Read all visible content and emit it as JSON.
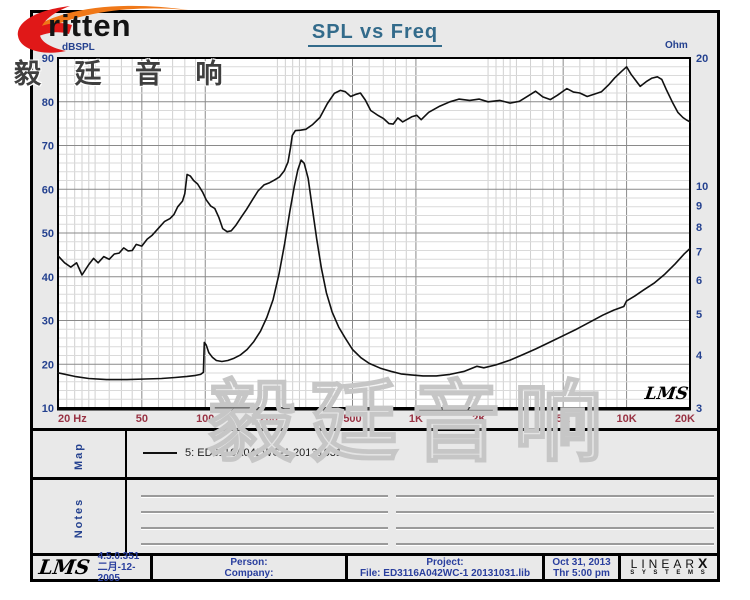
{
  "brand": {
    "logo_text": "ritten",
    "chinese_name": "毅 廷 音 响"
  },
  "header": {
    "title": "SPL vs Freq"
  },
  "chart_labels": {
    "left_unit": "dBSPL",
    "right_unit": "Ohm",
    "lms_script": "LMS",
    "watermark": "毅廷音响"
  },
  "chart_data": {
    "type": "line",
    "title": "SPL vs Freq",
    "x_axis": {
      "label": "Hz",
      "scale": "log",
      "range": [
        20,
        20000
      ],
      "ticks": [
        [
          20,
          "20  Hz"
        ],
        [
          50,
          "50"
        ],
        [
          100,
          "100"
        ],
        [
          200,
          "200"
        ],
        [
          500,
          "500"
        ],
        [
          1000,
          "1K"
        ],
        [
          2000,
          "2K"
        ],
        [
          5000,
          "5K"
        ],
        [
          10000,
          "10K"
        ],
        [
          20000,
          "20K"
        ]
      ]
    },
    "y_left": {
      "label": "dBSPL",
      "scale": "linear",
      "range": [
        10,
        90
      ],
      "ticks": [
        90,
        80,
        70,
        60,
        50,
        40,
        30,
        20,
        10
      ]
    },
    "y_right": {
      "label": "Ohm",
      "scale": "log",
      "range": [
        3,
        20
      ],
      "ticks": [
        20,
        10,
        9,
        8,
        7,
        6,
        5,
        4,
        3
      ]
    },
    "grid": true,
    "legend_position": "map-panel",
    "series": [
      {
        "name": "5: ED3116A042WC-1  20131031 (SPL dB)",
        "axis": "left",
        "color": "#111111",
        "points": [
          [
            20,
            44.8
          ],
          [
            21.5,
            43.2
          ],
          [
            23,
            42.2
          ],
          [
            24.5,
            43.2
          ],
          [
            26,
            40.4
          ],
          [
            28,
            42.8
          ],
          [
            29.5,
            44.2
          ],
          [
            31,
            43.2
          ],
          [
            33,
            44.6
          ],
          [
            35,
            44.0
          ],
          [
            37,
            45.2
          ],
          [
            39,
            45.4
          ],
          [
            41,
            46.6
          ],
          [
            43,
            45.9
          ],
          [
            45,
            46.0
          ],
          [
            47,
            47.4
          ],
          [
            50,
            47.0
          ],
          [
            53,
            48.6
          ],
          [
            56,
            49.5
          ],
          [
            60,
            51.1
          ],
          [
            64,
            52.6
          ],
          [
            68,
            53.3
          ],
          [
            71,
            54.2
          ],
          [
            74,
            56.0
          ],
          [
            78,
            57.3
          ],
          [
            80,
            59.0
          ],
          [
            82,
            63.4
          ],
          [
            85,
            63.0
          ],
          [
            88,
            62.0
          ],
          [
            92,
            61.2
          ],
          [
            97,
            59.4
          ],
          [
            101,
            57.6
          ],
          [
            106,
            56.2
          ],
          [
            111,
            55.6
          ],
          [
            116,
            53.6
          ],
          [
            121,
            51.0
          ],
          [
            127,
            50.3
          ],
          [
            133,
            50.5
          ],
          [
            140,
            51.8
          ],
          [
            148,
            53.6
          ],
          [
            157,
            55.4
          ],
          [
            167,
            57.5
          ],
          [
            178,
            59.6
          ],
          [
            190,
            61.0
          ],
          [
            202,
            61.5
          ],
          [
            213,
            62.1
          ],
          [
            225,
            62.8
          ],
          [
            237,
            64.2
          ],
          [
            247,
            66.2
          ],
          [
            254,
            69.5
          ],
          [
            259,
            72.3
          ],
          [
            268,
            73.4
          ],
          [
            283,
            73.5
          ],
          [
            300,
            73.7
          ],
          [
            322,
            74.7
          ],
          [
            350,
            76.4
          ],
          [
            380,
            79.6
          ],
          [
            410,
            81.9
          ],
          [
            438,
            82.6
          ],
          [
            462,
            82.3
          ],
          [
            490,
            81.2
          ],
          [
            520,
            81.7
          ],
          [
            545,
            82.0
          ],
          [
            575,
            80.4
          ],
          [
            610,
            78.0
          ],
          [
            655,
            77.0
          ],
          [
            700,
            76.2
          ],
          [
            745,
            75.0
          ],
          [
            780,
            74.9
          ],
          [
            820,
            76.3
          ],
          [
            865,
            75.4
          ],
          [
            910,
            76.0
          ],
          [
            960,
            76.6
          ],
          [
            1010,
            76.9
          ],
          [
            1060,
            75.9
          ],
          [
            1150,
            77.6
          ],
          [
            1300,
            79.0
          ],
          [
            1450,
            80.0
          ],
          [
            1600,
            80.6
          ],
          [
            1800,
            80.3
          ],
          [
            2000,
            80.6
          ],
          [
            2200,
            80.0
          ],
          [
            2500,
            80.3
          ],
          [
            2800,
            79.7
          ],
          [
            3100,
            80.1
          ],
          [
            3400,
            81.3
          ],
          [
            3700,
            82.4
          ],
          [
            4000,
            81.1
          ],
          [
            4350,
            80.5
          ],
          [
            4700,
            81.5
          ],
          [
            5200,
            83.0
          ],
          [
            5600,
            82.2
          ],
          [
            6000,
            82.0
          ],
          [
            6500,
            81.2
          ],
          [
            7000,
            81.7
          ],
          [
            7600,
            82.3
          ],
          [
            8200,
            83.8
          ],
          [
            8800,
            85.5
          ],
          [
            9500,
            87.0
          ],
          [
            10000,
            88.0
          ],
          [
            10500,
            86.3
          ],
          [
            11000,
            85.0
          ],
          [
            11600,
            83.5
          ],
          [
            12400,
            84.6
          ],
          [
            13200,
            85.4
          ],
          [
            14000,
            85.7
          ],
          [
            14700,
            85.1
          ],
          [
            15500,
            82.6
          ],
          [
            16500,
            79.9
          ],
          [
            17500,
            77.6
          ],
          [
            18500,
            76.4
          ],
          [
            19300,
            75.8
          ],
          [
            20000,
            75.4
          ]
        ]
      },
      {
        "name": "5: ED3116A042WC-1  20131031 (Impedance Ohm)",
        "axis": "right",
        "color": "#111111",
        "points": [
          [
            20,
            3.63
          ],
          [
            24,
            3.56
          ],
          [
            28,
            3.52
          ],
          [
            34,
            3.5
          ],
          [
            42,
            3.5
          ],
          [
            52,
            3.51
          ],
          [
            62,
            3.52
          ],
          [
            72,
            3.54
          ],
          [
            82,
            3.56
          ],
          [
            90,
            3.58
          ],
          [
            95,
            3.6
          ],
          [
            98,
            3.64
          ],
          [
            99,
            4.28
          ],
          [
            101,
            4.22
          ],
          [
            104,
            4.05
          ],
          [
            108,
            3.95
          ],
          [
            113,
            3.88
          ],
          [
            120,
            3.86
          ],
          [
            128,
            3.88
          ],
          [
            137,
            3.93
          ],
          [
            147,
            4.0
          ],
          [
            158,
            4.12
          ],
          [
            170,
            4.3
          ],
          [
            183,
            4.55
          ],
          [
            196,
            4.9
          ],
          [
            210,
            5.4
          ],
          [
            224,
            6.2
          ],
          [
            238,
            7.3
          ],
          [
            252,
            8.7
          ],
          [
            265,
            10.0
          ],
          [
            275,
            10.9
          ],
          [
            285,
            11.5
          ],
          [
            295,
            11.3
          ],
          [
            308,
            10.4
          ],
          [
            322,
            8.9
          ],
          [
            338,
            7.5
          ],
          [
            356,
            6.4
          ],
          [
            376,
            5.6
          ],
          [
            400,
            5.05
          ],
          [
            430,
            4.65
          ],
          [
            462,
            4.38
          ],
          [
            500,
            4.12
          ],
          [
            548,
            3.94
          ],
          [
            600,
            3.82
          ],
          [
            680,
            3.72
          ],
          [
            760,
            3.66
          ],
          [
            850,
            3.61
          ],
          [
            950,
            3.59
          ],
          [
            1080,
            3.57
          ],
          [
            1250,
            3.57
          ],
          [
            1450,
            3.6
          ],
          [
            1700,
            3.66
          ],
          [
            1950,
            3.76
          ],
          [
            2100,
            3.73
          ],
          [
            2400,
            3.79
          ],
          [
            2800,
            3.89
          ],
          [
            3200,
            4.0
          ],
          [
            3700,
            4.13
          ],
          [
            4300,
            4.28
          ],
          [
            5000,
            4.44
          ],
          [
            5800,
            4.6
          ],
          [
            6700,
            4.78
          ],
          [
            7700,
            4.96
          ],
          [
            8700,
            5.1
          ],
          [
            9700,
            5.2
          ],
          [
            10000,
            5.36
          ],
          [
            10900,
            5.5
          ],
          [
            12000,
            5.68
          ],
          [
            13500,
            5.9
          ],
          [
            15200,
            6.2
          ],
          [
            17000,
            6.55
          ],
          [
            18800,
            6.92
          ],
          [
            20000,
            7.12
          ]
        ]
      }
    ]
  },
  "map_section": {
    "label": "Map",
    "legend": "5: ED3116A042WC-1  20131031"
  },
  "notes_section": {
    "label": "Notes"
  },
  "footer": {
    "lms": "LMS",
    "version": "4.5.0.351",
    "version_date": "二月-12-2005",
    "person": "Person:",
    "company": "Company:",
    "project": "Project:",
    "file": "File: ED3116A042WC-1  20131031.lib",
    "date": "Oct 31, 2013",
    "time": "Thr  5:00 pm",
    "linearx_main": "LINEAR",
    "linearx_x": "X",
    "linearx_sub": "S Y S T E M S"
  },
  "colors": {
    "title": "#336b8b",
    "axis_blue": "#24418f",
    "freq_red": "#993344",
    "footer_blue": "#2a3f9e",
    "logo_red": "#e01818",
    "logo_orange": "#f07818"
  }
}
